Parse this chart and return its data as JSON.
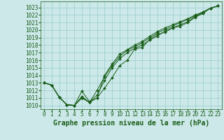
{
  "title": "Graphe pression niveau de la mer (hPa)",
  "bg_color": "#cce8e8",
  "grid_color": "#99cccc",
  "line_color": "#1a5e1a",
  "ylim": [
    1009.5,
    1023.8
  ],
  "xlim": [
    -0.5,
    23.5
  ],
  "yticks": [
    1010,
    1011,
    1012,
    1013,
    1014,
    1015,
    1016,
    1017,
    1018,
    1019,
    1020,
    1021,
    1022,
    1023
  ],
  "xticks": [
    0,
    1,
    2,
    3,
    4,
    5,
    6,
    7,
    8,
    9,
    10,
    11,
    12,
    13,
    14,
    15,
    16,
    17,
    18,
    19,
    20,
    21,
    22,
    23
  ],
  "series": [
    [
      1013.0,
      1012.7,
      1011.1,
      1010.1,
      1010.0,
      1011.9,
      1010.5,
      1011.0,
      1012.3,
      1013.7,
      1015.3,
      1016.0,
      1017.5,
      1017.7,
      1018.8,
      1019.4,
      1019.7,
      1020.3,
      1020.5,
      1021.0,
      1021.7,
      1022.2,
      1022.9,
      1023.2
    ],
    [
      1013.0,
      1012.7,
      1011.1,
      1010.1,
      1010.0,
      1011.2,
      1010.4,
      1011.4,
      1013.3,
      1015.0,
      1016.2,
      1017.0,
      1017.6,
      1018.0,
      1018.7,
      1019.2,
      1019.9,
      1020.3,
      1020.7,
      1021.1,
      1021.8,
      1022.3,
      1022.9,
      1023.2
    ],
    [
      1013.0,
      1012.7,
      1011.1,
      1010.1,
      1010.0,
      1011.0,
      1010.4,
      1012.0,
      1013.8,
      1015.3,
      1016.5,
      1017.3,
      1017.8,
      1018.3,
      1019.0,
      1019.6,
      1020.1,
      1020.5,
      1021.0,
      1021.4,
      1021.9,
      1022.3,
      1022.9,
      1023.2
    ],
    [
      1013.0,
      1012.7,
      1011.1,
      1010.1,
      1010.0,
      1011.0,
      1010.4,
      1011.0,
      1014.0,
      1015.5,
      1016.8,
      1017.4,
      1018.0,
      1018.5,
      1019.2,
      1019.8,
      1020.3,
      1020.7,
      1021.1,
      1021.5,
      1022.0,
      1022.4,
      1022.9,
      1023.2
    ]
  ],
  "tick_fontsize": 5.5,
  "xlabel_fontsize": 7,
  "marker_size": 2.0,
  "linewidth": 0.7
}
